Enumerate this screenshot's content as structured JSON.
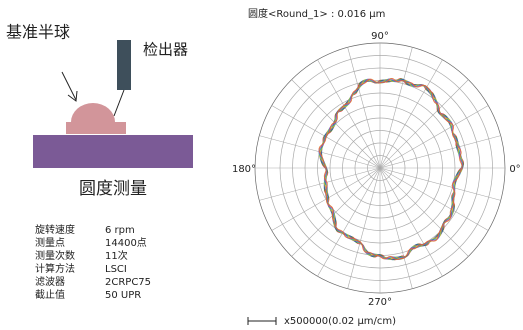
{
  "schematic": {
    "reference_label": "基准半球",
    "detector_label": "检出器",
    "caption": "圆度测量"
  },
  "parameters": [
    [
      "旋转速度",
      "6 rpm"
    ],
    [
      "测量点",
      "14400点"
    ],
    [
      "测量次数",
      "11次"
    ],
    [
      "计算方法",
      "LSCI"
    ],
    [
      "滤波器",
      "2CRPC75"
    ],
    [
      "截止值",
      "50 UPR"
    ]
  ],
  "polar": {
    "title": "圆度<Round_1> : 0.016 μm",
    "angle_labels": {
      "top": "90°",
      "left": "180°",
      "right": "0°",
      "bottom": "270°"
    },
    "scale": "x500000(0.02 μm/cm)"
  }
}
